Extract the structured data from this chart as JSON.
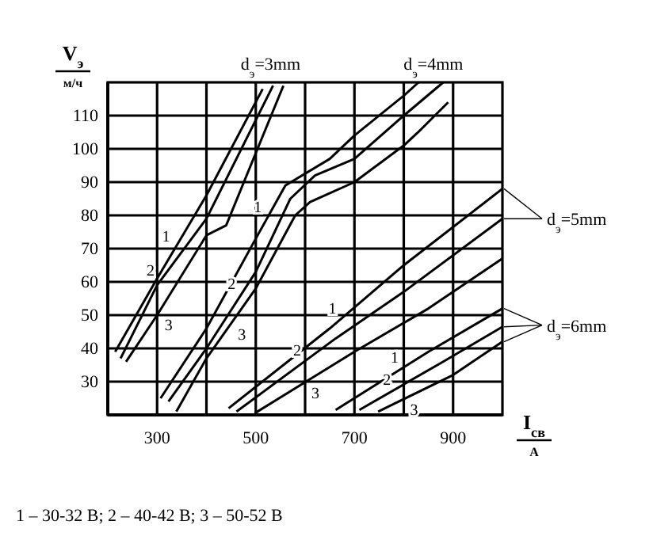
{
  "chart_data": {
    "type": "line",
    "xlabel": "I$_{св}$",
    "ylabel": "V$_{э}$",
    "xlim": [
      200,
      1000
    ],
    "ylim": [
      20,
      120
    ],
    "xticks": [
      300,
      {
        "value": 400,
        "label": null
      },
      500,
      {
        "value": 600,
        "label": null
      },
      700,
      {
        "value": 800,
        "label": null
      },
      900
    ],
    "yticks": [
      30,
      40,
      50,
      60,
      70,
      80,
      90,
      100,
      110
    ],
    "grid": true,
    "marker": "none",
    "line_style": "solid",
    "series": [
      {
        "name": "1",
        "color": "#000000",
        "x": [
          215,
          300,
          400,
          514
        ],
        "values": [
          39,
          61,
          86,
          118
        ]
      },
      {
        "name": "2",
        "color": "#000000",
        "x": [
          226,
          300,
          400,
          535
        ],
        "values": [
          37,
          59,
          79,
          119
        ]
      },
      {
        "name": "3",
        "color": "#000000",
        "x": [
          237,
          300,
          400,
          440,
          556
        ],
        "values": [
          36,
          50,
          74,
          77,
          119
        ]
      },
      {
        "name": "1",
        "color": "#000000",
        "x": [
          307,
          400,
          500,
          560,
          650,
          700,
          800,
          830
        ],
        "values": [
          25,
          46,
          73,
          89,
          97,
          104,
          116,
          120
        ]
      },
      {
        "name": "2",
        "color": "#000000",
        "x": [
          323,
          400,
          500,
          570,
          620,
          700,
          800,
          880
        ],
        "values": [
          24,
          40,
          63,
          85,
          92,
          97,
          110,
          120
        ]
      },
      {
        "name": "3",
        "color": "#000000",
        "x": [
          339,
          400,
          500,
          580,
          610,
          700,
          800,
          836,
          890
        ],
        "values": [
          21,
          37,
          58,
          80,
          84,
          90,
          101,
          106,
          114
        ]
      },
      {
        "name": "1",
        "color": "#000000",
        "x": [
          445,
          650,
          800,
          1000
        ],
        "values": [
          22,
          46,
          65,
          88
        ]
      },
      {
        "name": "2",
        "color": "#000000",
        "x": [
          461,
          662,
          800,
          1000
        ],
        "values": [
          21,
          43,
          57,
          79
        ]
      },
      {
        "name": "3",
        "color": "#000000",
        "x": [
          498,
          700,
          850,
          1000
        ],
        "values": [
          20.5,
          39,
          52,
          67
        ]
      },
      {
        "name": "1",
        "color": "#000000",
        "x": [
          662,
          850,
          1000
        ],
        "values": [
          21.5,
          39,
          52
        ]
      },
      {
        "name": "2",
        "color": "#000000",
        "x": [
          710,
          880,
          1000
        ],
        "values": [
          21.5,
          36,
          46.5
        ]
      },
      {
        "name": "3",
        "color": "#000000",
        "x": [
          748,
          900,
          1000
        ],
        "values": [
          21,
          32,
          42
        ]
      }
    ],
    "annotations": [
      {
        "text": "d$_{э}$=3mm",
        "x": 530,
        "y": 120
      },
      {
        "text": "d$_{э}$=4mm",
        "x": 860,
        "y": 120
      },
      {
        "text": "d$_{э}$=5mm",
        "x": 1000,
        "y": 79
      },
      {
        "text": "d$_{э}$=6mm",
        "x": 1000,
        "y": 47
      },
      "м/ч",
      "A",
      "1 – 30-32 B; 2 – 40-42 B; 3 – 50-52 B"
    ]
  }
}
